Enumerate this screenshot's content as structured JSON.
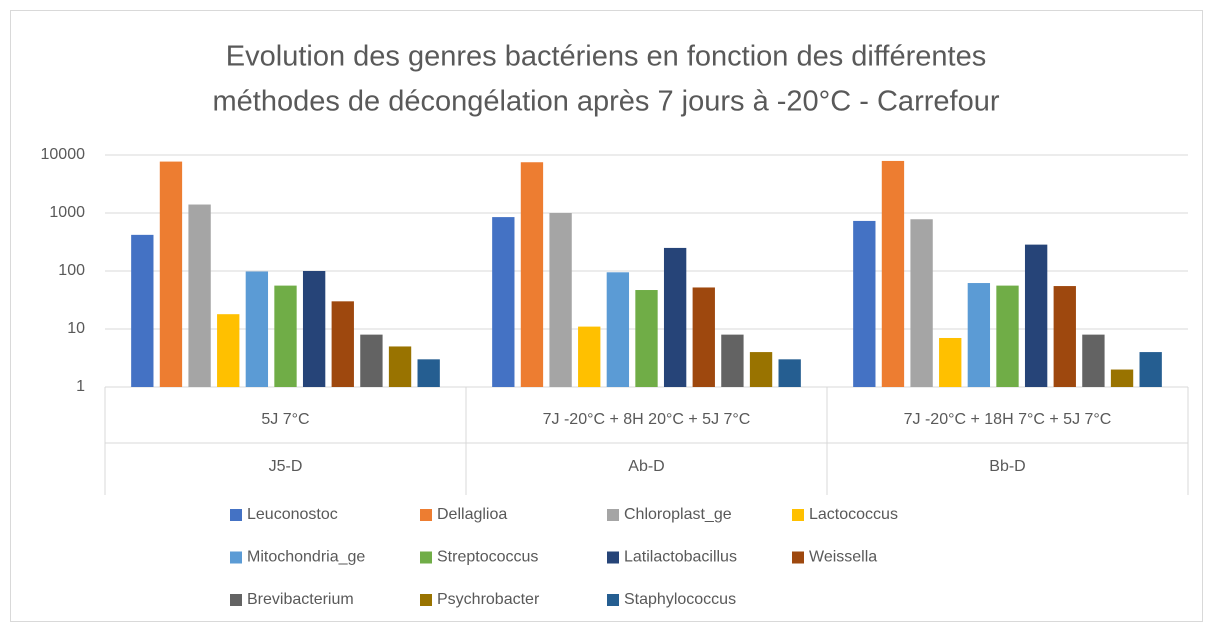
{
  "chart_data": {
    "type": "bar",
    "title": [
      "Evolution des genres bactériens en fonction des différentes",
      "méthodes de décongélation après 7 jours à -20°C - Carrefour"
    ],
    "categories": [
      "5J 7°C",
      "7J -20°C + 8H 20°C + 5J 7°C",
      "7J -20°C + 18H 7°C + 5J 7°C"
    ],
    "category_groups": [
      "J5-D",
      "Ab-D",
      "Bb-D"
    ],
    "log_scale": true,
    "ylim": [
      1,
      10000
    ],
    "yticks": [
      1,
      10,
      100,
      1000,
      10000
    ],
    "grid": true,
    "legend": "bottom",
    "series": [
      {
        "name": "Leuconostoc",
        "color": "#4472c4",
        "values": [
          420,
          850,
          730
        ]
      },
      {
        "name": "Dellaglioa",
        "color": "#ed7d31",
        "values": [
          7700,
          7500,
          7900
        ]
      },
      {
        "name": "Chloroplast_ge",
        "color": "#a5a5a5",
        "values": [
          1400,
          1000,
          780
        ]
      },
      {
        "name": "Lactococcus",
        "color": "#ffc000",
        "values": [
          18,
          11,
          7
        ]
      },
      {
        "name": "Mitochondria_ge",
        "color": "#5b9bd5",
        "values": [
          98,
          95,
          62
        ]
      },
      {
        "name": "Streptococcus",
        "color": "#70ad47",
        "values": [
          56,
          47,
          56
        ]
      },
      {
        "name": "Latilactobacillus",
        "color": "#264478",
        "values": [
          100,
          250,
          285
        ]
      },
      {
        "name": "Weissella",
        "color": "#9e480e",
        "values": [
          30,
          52,
          55
        ]
      },
      {
        "name": "Brevibacterium",
        "color": "#636363",
        "values": [
          8,
          8,
          8
        ]
      },
      {
        "name": "Psychrobacter",
        "color": "#997300",
        "values": [
          5,
          4,
          2
        ]
      },
      {
        "name": "Staphylococcus",
        "color": "#255e91",
        "values": [
          3,
          3,
          4
        ]
      }
    ]
  }
}
